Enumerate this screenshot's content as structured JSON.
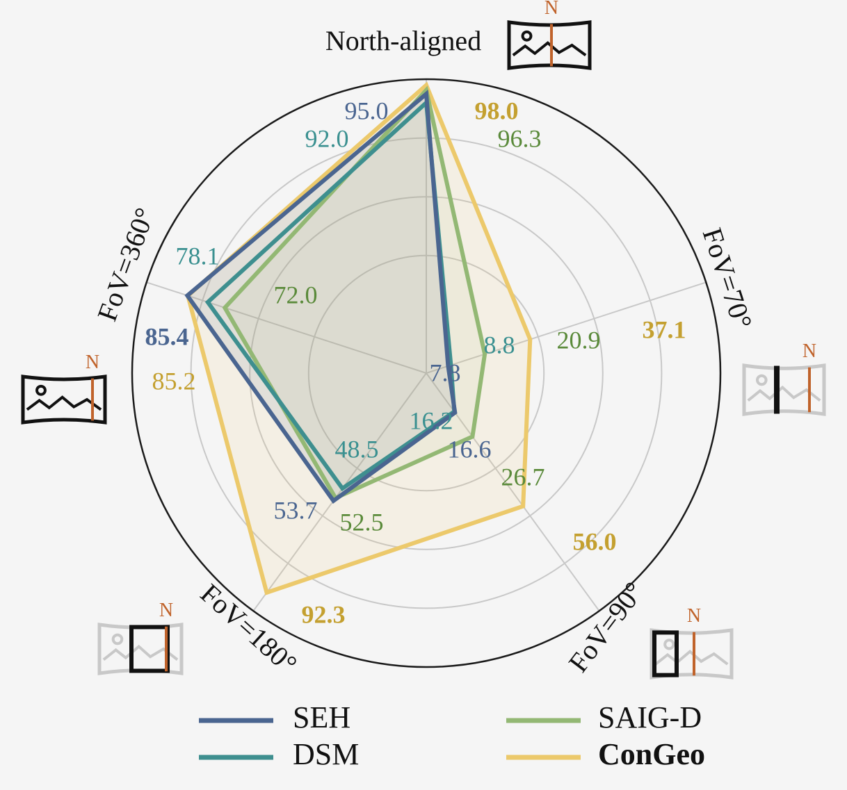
{
  "chart_data": {
    "type": "radar",
    "axes": [
      "North-aligned",
      "FoV=70°",
      "FoV=90°",
      "FoV=180°",
      "FoV=360°"
    ],
    "rmax": 100,
    "grid": true,
    "legend_position": "bottom",
    "series": [
      {
        "name": "SEH",
        "color": "#4a6590",
        "values": [
          95.0,
          7.8,
          16.6,
          53.7,
          85.4
        ],
        "fill": true,
        "fill_opacity": 0.12
      },
      {
        "name": "DSM",
        "color": "#3e8f8f",
        "values": [
          92.0,
          8.8,
          16.2,
          48.5,
          78.1
        ],
        "fill": false,
        "fill_opacity": 0
      },
      {
        "name": "SAIG-D",
        "color": "#93b874",
        "values": [
          96.3,
          20.9,
          26.7,
          52.5,
          72.0
        ],
        "fill": true,
        "fill_opacity": 0.08
      },
      {
        "name": "ConGeo",
        "color": "#ecc96b",
        "values": [
          98.0,
          37.1,
          56.0,
          92.3,
          85.2
        ],
        "fill": true,
        "fill_opacity": 0.12
      }
    ],
    "data_labels": [
      {
        "text": "95.0",
        "color": "#4a6590",
        "bold": false
      },
      {
        "text": "92.0",
        "color": "#3a9090",
        "bold": false
      },
      {
        "text": "98.0",
        "color": "#c4a030",
        "bold": true
      },
      {
        "text": "96.3",
        "color": "#5a8a3a",
        "bold": false
      },
      {
        "text": "8.8",
        "color": "#3a9090",
        "bold": false
      },
      {
        "text": "20.9",
        "color": "#5a8a3a",
        "bold": false
      },
      {
        "text": "37.1",
        "color": "#c4a030",
        "bold": true
      },
      {
        "text": "7.8",
        "color": "#4a6590",
        "bold": false
      },
      {
        "text": "16.2",
        "color": "#3a9090",
        "bold": false
      },
      {
        "text": "16.6",
        "color": "#4a6590",
        "bold": false
      },
      {
        "text": "26.7",
        "color": "#5a8a3a",
        "bold": false
      },
      {
        "text": "56.0",
        "color": "#c4a030",
        "bold": true
      },
      {
        "text": "48.5",
        "color": "#3a9090",
        "bold": false
      },
      {
        "text": "53.7",
        "color": "#4a6590",
        "bold": false
      },
      {
        "text": "52.5",
        "color": "#5a8a3a",
        "bold": false
      },
      {
        "text": "92.3",
        "color": "#c4a030",
        "bold": true
      },
      {
        "text": "78.1",
        "color": "#3a9090",
        "bold": false
      },
      {
        "text": "72.0",
        "color": "#5a8a3a",
        "bold": false
      },
      {
        "text": "85.4",
        "color": "#4a6590",
        "bold": true
      },
      {
        "text": "85.2",
        "color": "#c4a030",
        "bold": false
      }
    ]
  },
  "legend": [
    {
      "label": "SEH",
      "color": "#4a6590",
      "bold": false
    },
    {
      "label": "SAIG-D",
      "color": "#93b874",
      "bold": false
    },
    {
      "label": "DSM",
      "color": "#3e8f8f",
      "bold": false
    },
    {
      "label": "ConGeo",
      "color": "#ecc96b",
      "bold": true
    }
  ],
  "icons": [
    {
      "name": "north-aligned-panorama-icon",
      "north_label": "N"
    },
    {
      "name": "fov70-panorama-icon",
      "north_label": "N"
    },
    {
      "name": "fov90-panorama-icon",
      "north_label": "N"
    },
    {
      "name": "fov180-panorama-icon",
      "north_label": "N"
    },
    {
      "name": "fov360-panorama-icon",
      "north_label": "N"
    }
  ],
  "colors": {
    "background": "#f5f5f5",
    "grid": "#c8c8c8",
    "north_marker": "#c0632b"
  }
}
